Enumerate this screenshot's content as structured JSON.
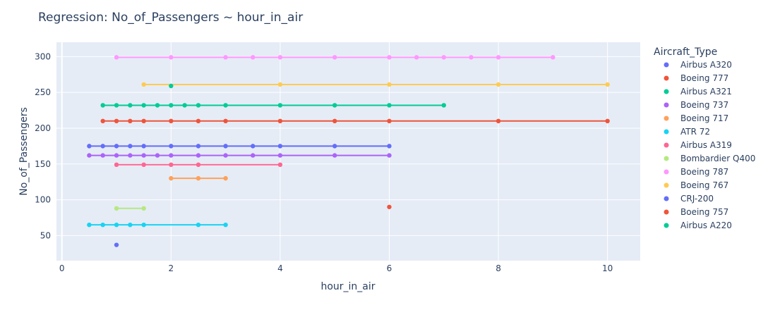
{
  "chart_data": {
    "type": "scatter",
    "title": "Regression: No_of_Passengers ~ hour_in_air",
    "xlabel": "hour_in_air",
    "ylabel": "No_of_Passengers",
    "xlim": [
      -0.1,
      10.6
    ],
    "ylim": [
      15,
      320
    ],
    "x_ticks": [
      0,
      2,
      4,
      6,
      8,
      10
    ],
    "y_ticks": [
      50,
      100,
      150,
      200,
      250,
      300
    ],
    "grid": true,
    "legend_title": "Aircraft_Type",
    "legend_position": "right",
    "series": [
      {
        "name": "Airbus A320",
        "color": "#636efa",
        "y": 175,
        "x": [
          0.5,
          0.75,
          1,
          1.25,
          1.5,
          2,
          2.5,
          3,
          3.5,
          4,
          5,
          6
        ]
      },
      {
        "name": "Boeing 777",
        "color": "#EF553B",
        "y": 210,
        "x": [
          0.75,
          1,
          1.25,
          1.5,
          2,
          2.5,
          3,
          4,
          5,
          6,
          8,
          10
        ]
      },
      {
        "name": "Airbus A321",
        "color": "#00cc96",
        "y": 232,
        "x": [
          0.75,
          1,
          1.25,
          1.5,
          1.75,
          2,
          2.25,
          2.5,
          3,
          4,
          5,
          6,
          7
        ]
      },
      {
        "name": "Boeing 737",
        "color": "#ab63fa",
        "y": 162,
        "x": [
          0.5,
          0.75,
          1,
          1.25,
          1.5,
          1.75,
          2,
          2.5,
          3,
          3.5,
          4,
          5,
          6
        ]
      },
      {
        "name": "Boeing 717",
        "color": "#FFA15A",
        "y": 130,
        "x": [
          2,
          2.5,
          3
        ]
      },
      {
        "name": "ATR 72",
        "color": "#19d3f3",
        "y": 65,
        "x": [
          0.5,
          0.75,
          1,
          1.25,
          1.5,
          2.5,
          3
        ]
      },
      {
        "name": "Airbus A319",
        "color": "#FF6692",
        "y": 149,
        "x": [
          1,
          1.5,
          2,
          2.5,
          4
        ]
      },
      {
        "name": "Bombardier Q400",
        "color": "#B6E880",
        "y": 88,
        "x": [
          1,
          1.5
        ]
      },
      {
        "name": "Boeing 787",
        "color": "#FF97FF",
        "y": 299,
        "x": [
          1,
          2,
          3,
          3.5,
          4,
          5,
          6,
          6.5,
          7,
          7.5,
          8,
          9
        ]
      },
      {
        "name": "Boeing 767",
        "color": "#FECB52",
        "y": 261,
        "x": [
          1.5,
          4,
          6,
          8,
          10
        ]
      },
      {
        "name": "CRJ-200",
        "color": "#636efa",
        "y": 37,
        "x": [
          1
        ]
      },
      {
        "name": "Boeing 757",
        "color": "#EF553B",
        "y": 90,
        "x": [
          6
        ]
      },
      {
        "name": "Airbus A220",
        "color": "#00cc96",
        "y": 259,
        "x": [
          2
        ]
      }
    ]
  }
}
